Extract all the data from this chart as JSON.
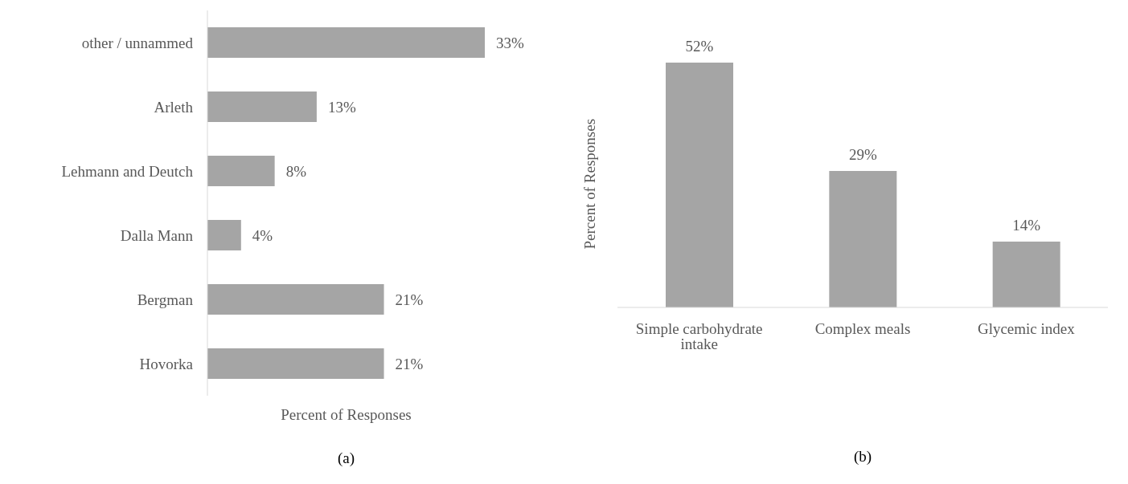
{
  "chart_data": [
    {
      "type": "bar",
      "orientation": "horizontal",
      "title": "(a)",
      "xlabel": "Percent of Responses",
      "categories": [
        "other / unnammed",
        "Arleth",
        "Lehmann and Deutch",
        "Dalla Mann",
        "Bergman",
        "Hovorka"
      ],
      "values": [
        33,
        13,
        8,
        4,
        21,
        21
      ],
      "value_labels": [
        "33%",
        "13%",
        "8%",
        "4%",
        "21%",
        "21%"
      ],
      "color": "#a5a5a5",
      "tick_labels": "y"
    },
    {
      "type": "bar",
      "title": "(b)",
      "ylabel": "Percent of Responses",
      "categories": [
        "Simple carbohydrate intake",
        "Complex meals",
        "Glycemic index"
      ],
      "values": [
        52,
        29,
        14
      ],
      "value_labels": [
        "52%",
        "29%",
        "14%"
      ],
      "color": "#a5a5a5",
      "tick_labels": "x"
    }
  ]
}
